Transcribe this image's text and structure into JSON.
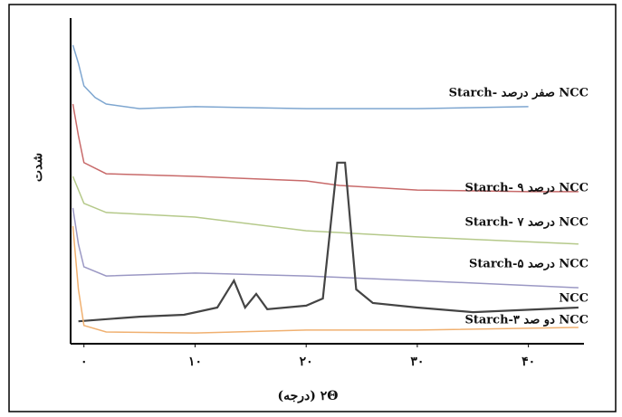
{
  "chart_data": {
    "type": "line",
    "x_label": "۲Θ (درجه)",
    "y_label": "شدت",
    "xlim": [
      -1.2,
      45
    ],
    "ylim": [
      0,
      100
    ],
    "xticks": [
      {
        "value": 0,
        "label": "۰"
      },
      {
        "value": 10,
        "label": "۱۰"
      },
      {
        "value": 20,
        "label": "۲۰"
      },
      {
        "value": 30,
        "label": "۳۰"
      },
      {
        "value": 40,
        "label": "۴۰"
      }
    ],
    "series": [
      {
        "name": "Starch- صفر درصد NCC",
        "color": "#7ea6d0",
        "x": [
          -1,
          -0.5,
          0,
          1,
          2,
          5,
          10,
          20,
          30,
          40
        ],
        "values": [
          91.7,
          86.1,
          79.2,
          75.6,
          73.6,
          72.2,
          72.8,
          72.2,
          72.2,
          72.8
        ]
      },
      {
        "name": "Starch- ۹ درصد NCC",
        "color": "#c86a6a",
        "x": [
          -1,
          -0.5,
          0,
          2,
          10,
          20,
          23,
          30,
          40,
          44.5
        ],
        "values": [
          73.6,
          63.9,
          55.6,
          52.2,
          51.4,
          50.0,
          48.6,
          47.2,
          46.7,
          46.7
        ]
      },
      {
        "name": "Starch- ۷ درصد NCC",
        "color": "#b5c98a",
        "x": [
          -1,
          0,
          2,
          10,
          20,
          30,
          44.5
        ],
        "values": [
          51.4,
          43.1,
          40.3,
          38.9,
          34.7,
          32.8,
          30.6
        ]
      },
      {
        "name": "Starch-۵ درصد NCC",
        "color": "#9b98c4",
        "x": [
          -1,
          -0.5,
          0,
          2,
          10,
          20,
          30,
          44.5
        ],
        "values": [
          41.7,
          30.6,
          23.6,
          20.8,
          21.7,
          20.8,
          19.4,
          17.2
        ]
      },
      {
        "name": "NCC",
        "color": "#444444",
        "x": [
          -0.5,
          5,
          9,
          12,
          13.5,
          14.5,
          15.5,
          16.5,
          20,
          21.5,
          22.8,
          23.5,
          24.5,
          26,
          30,
          35,
          44.5
        ],
        "values": [
          6.9,
          8.3,
          8.9,
          11.1,
          19.4,
          11.1,
          15.3,
          10.6,
          11.7,
          13.9,
          55.6,
          55.6,
          16.7,
          12.5,
          11.1,
          9.7,
          11.1
        ]
      },
      {
        "name": "Starch-۳ دو صد NCC",
        "color": "#f0b070",
        "x": [
          -1,
          -0.5,
          0,
          2,
          10,
          20,
          30,
          44.5
        ],
        "values": [
          36.1,
          16.7,
          5.6,
          3.6,
          3.3,
          4.2,
          4.2,
          5.0
        ]
      }
    ]
  }
}
